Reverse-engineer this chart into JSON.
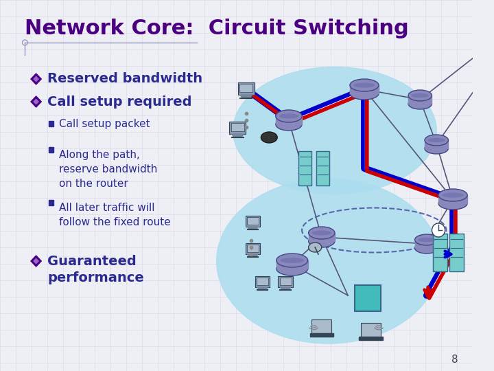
{
  "background_color": "#eeeef5",
  "grid_color": "#d8d8e8",
  "title": "Network Core:  Circuit Switching",
  "title_color": "#4b0082",
  "title_fontsize": 22,
  "bullet1": "Reserved bandwidth",
  "bullet2": "Call setup required",
  "sub_bullets": [
    "Call setup packet",
    "Along the path,\nreserve bandwidth\non the router",
    "All later traffic will\nfollow the fixed route"
  ],
  "bullet3_line1": "Guaranteed",
  "bullet3_line2": "performance",
  "slide_number": "8",
  "text_color": "#2b2b8f",
  "sub_text_color": "#2b2b8f",
  "accent_color": "#4b0082",
  "network_bg_color": "#aaddee",
  "node_color": "#8888bb",
  "node_edge": "#444488",
  "line_blue": "#0000cc",
  "line_red": "#cc0000",
  "line_gray": "#555577"
}
